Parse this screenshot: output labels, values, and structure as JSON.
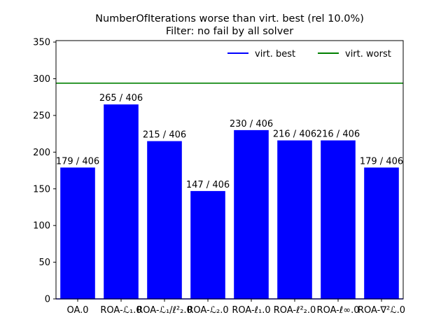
{
  "chart_data": {
    "type": "bar",
    "title": "NumberOfIterations worse than virt. best (rel 10.0%)",
    "subtitle": "Filter: no fail by all solver",
    "categories": [
      "OA.0",
      "ROA-ℒ₁.0",
      "ROA-ℒ₁/ℓ²₂.0",
      "ROA-ℒ₂.0",
      "ROA-ℓ₁.0",
      "ROA-ℓ²₂.0",
      "ROA-ℓ∞.0",
      "ROA-∇²ℒ.0"
    ],
    "values": [
      179,
      265,
      215,
      147,
      230,
      216,
      216,
      179
    ],
    "data_labels": [
      "179 / 406",
      "265 / 406",
      "215 / 406",
      "147 / 406",
      "230 / 406",
      "216 / 406",
      "216 / 406",
      "179 / 406"
    ],
    "bar_color": "#0000ff",
    "ylim": [
      0,
      352
    ],
    "yticks": [
      0,
      50,
      100,
      150,
      200,
      250,
      300,
      350
    ],
    "reference_lines": [
      {
        "name": "virt. best",
        "value": 0,
        "color": "#0000ff"
      },
      {
        "name": "virt. worst",
        "value": 294,
        "color": "#008000"
      }
    ],
    "legend": {
      "position": "top-right",
      "entries": [
        "virt. best",
        "virt. worst"
      ]
    },
    "grid": false,
    "xlabel": "",
    "ylabel": ""
  }
}
